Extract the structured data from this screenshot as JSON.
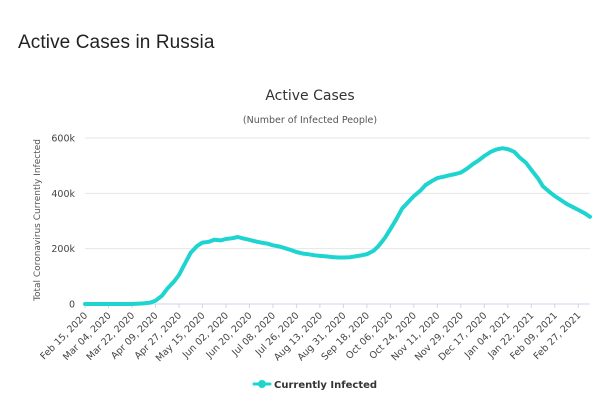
{
  "page": {
    "title": "Active Cases in Russia"
  },
  "chart_data": {
    "type": "line",
    "title": "Active Cases",
    "subtitle": "(Number of Infected People)",
    "ylabel": "Total Coronavirus Currently Infected",
    "xlabel": "",
    "ylim": [
      0,
      600000
    ],
    "y_ticks": [
      0,
      200000,
      400000,
      600000
    ],
    "y_tick_labels": [
      "0",
      "200k",
      "400k",
      "600k"
    ],
    "x_tick_labels": [
      "Feb 15, 2020",
      "Mar 04, 2020",
      "Mar 22, 2020",
      "Apr 09, 2020",
      "Apr 27, 2020",
      "May 15, 2020",
      "Jun 02, 2020",
      "Jun 20, 2020",
      "Jul 08, 2020",
      "Jul 26, 2020",
      "Aug 13, 2020",
      "Aug 31, 2020",
      "Sep 18, 2020",
      "Oct 06, 2020",
      "Oct 24, 2020",
      "Nov 11, 2020",
      "Nov 29, 2020",
      "Dec 17, 2020",
      "Jan 04, 2021",
      "Jan 22, 2021",
      "Feb 09, 2021",
      "Feb 27, 2021"
    ],
    "grid": "horizontal",
    "legend_position": "bottom-center",
    "series": [
      {
        "name": "Currently Infected",
        "color": "#1ed4d0",
        "x": [
          "Feb 15, 2020",
          "Feb 24, 2020",
          "Mar 04, 2020",
          "Mar 13, 2020",
          "Mar 22, 2020",
          "Mar 31, 2020",
          "Apr 05, 2020",
          "Apr 09, 2020",
          "Apr 14, 2020",
          "Apr 18, 2020",
          "Apr 23, 2020",
          "Apr 27, 2020",
          "May 02, 2020",
          "May 06, 2020",
          "May 11, 2020",
          "May 15, 2020",
          "May 20, 2020",
          "May 24, 2020",
          "May 29, 2020",
          "Jun 02, 2020",
          "Jun 07, 2020",
          "Jun 11, 2020",
          "Jun 16, 2020",
          "Jun 20, 2020",
          "Jun 25, 2020",
          "Jun 29, 2020",
          "Jul 04, 2020",
          "Jul 08, 2020",
          "Jul 13, 2020",
          "Jul 17, 2020",
          "Jul 22, 2020",
          "Jul 26, 2020",
          "Jul 31, 2020",
          "Aug 04, 2020",
          "Aug 09, 2020",
          "Aug 13, 2020",
          "Aug 18, 2020",
          "Aug 22, 2020",
          "Aug 27, 2020",
          "Aug 31, 2020",
          "Sep 05, 2020",
          "Sep 09, 2020",
          "Sep 14, 2020",
          "Sep 18, 2020",
          "Sep 23, 2020",
          "Sep 27, 2020",
          "Oct 02, 2020",
          "Oct 06, 2020",
          "Oct 11, 2020",
          "Oct 15, 2020",
          "Oct 20, 2020",
          "Oct 24, 2020",
          "Oct 29, 2020",
          "Nov 02, 2020",
          "Nov 07, 2020",
          "Nov 11, 2020",
          "Nov 16, 2020",
          "Nov 20, 2020",
          "Nov 25, 2020",
          "Nov 29, 2020",
          "Dec 04, 2020",
          "Dec 08, 2020",
          "Dec 13, 2020",
          "Dec 17, 2020",
          "Dec 22, 2020",
          "Dec 26, 2020",
          "Dec 31, 2020",
          "Jan 04, 2021",
          "Jan 09, 2021",
          "Jan 13, 2021",
          "Jan 18, 2021",
          "Jan 22, 2021",
          "Jan 27, 2021",
          "Jan 31, 2021",
          "Feb 05, 2021",
          "Feb 09, 2021",
          "Feb 14, 2021",
          "Feb 18, 2021",
          "Feb 23, 2021",
          "Feb 27, 2021",
          "Mar 04, 2021",
          "Mar 08, 2021"
        ],
        "values": [
          0,
          0,
          0,
          0,
          0,
          2000,
          5000,
          12000,
          30000,
          55000,
          80000,
          105000,
          150000,
          185000,
          210000,
          222000,
          225000,
          232000,
          230000,
          235000,
          238000,
          242000,
          236000,
          232000,
          226000,
          222000,
          218000,
          212000,
          208000,
          202000,
          195000,
          188000,
          182000,
          180000,
          176000,
          174000,
          172000,
          170000,
          168000,
          168000,
          169000,
          172000,
          176000,
          180000,
          192000,
          210000,
          240000,
          270000,
          310000,
          345000,
          370000,
          390000,
          410000,
          430000,
          445000,
          455000,
          460000,
          465000,
          470000,
          475000,
          490000,
          505000,
          520000,
          535000,
          550000,
          558000,
          563000,
          560000,
          550000,
          530000,
          510000,
          485000,
          455000,
          425000,
          405000,
          390000,
          375000,
          362000,
          350000,
          340000,
          328000,
          315000
        ]
      }
    ]
  }
}
